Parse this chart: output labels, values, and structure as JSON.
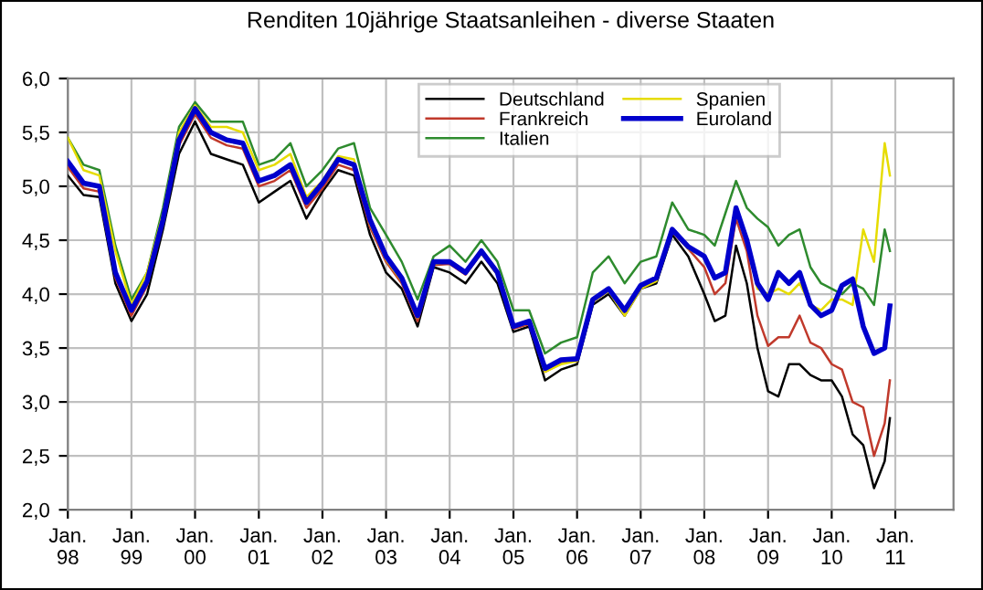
{
  "chart_data": {
    "type": "line",
    "title": "Renditen 10jährige Staatsanleihen - diverse Staaten",
    "x": [
      "1998-01",
      "1998-04",
      "1998-07",
      "1998-10",
      "1999-01",
      "1999-04",
      "1999-07",
      "1999-10",
      "2000-01",
      "2000-04",
      "2000-07",
      "2000-10",
      "2001-01",
      "2001-04",
      "2001-07",
      "2001-10",
      "2002-01",
      "2002-04",
      "2002-07",
      "2002-10",
      "2003-01",
      "2003-04",
      "2003-07",
      "2003-10",
      "2004-01",
      "2004-04",
      "2004-07",
      "2004-10",
      "2005-01",
      "2005-04",
      "2005-07",
      "2005-10",
      "2006-01",
      "2006-04",
      "2006-07",
      "2006-10",
      "2007-01",
      "2007-04",
      "2007-07",
      "2007-10",
      "2008-01",
      "2008-03",
      "2008-05",
      "2008-07",
      "2008-09",
      "2008-11",
      "2009-01",
      "2009-03",
      "2009-05",
      "2009-07",
      "2009-09",
      "2009-11",
      "2010-01",
      "2010-03",
      "2010-05",
      "2010-07",
      "2010-09",
      "2010-11",
      "2010-12"
    ],
    "series": [
      {
        "name": "Deutschland",
        "color": "#000000",
        "values": [
          5.1,
          4.92,
          4.9,
          4.1,
          3.75,
          4.0,
          4.6,
          5.3,
          5.6,
          5.3,
          5.25,
          5.2,
          4.85,
          4.95,
          5.05,
          4.7,
          4.95,
          5.15,
          5.1,
          4.55,
          4.2,
          4.05,
          3.7,
          4.25,
          4.2,
          4.1,
          4.3,
          4.1,
          3.65,
          3.7,
          3.2,
          3.3,
          3.35,
          3.9,
          4.0,
          3.8,
          4.05,
          4.1,
          4.55,
          4.35,
          4.0,
          3.75,
          3.8,
          4.45,
          4.1,
          3.5,
          3.1,
          3.05,
          3.35,
          3.35,
          3.25,
          3.2,
          3.2,
          3.05,
          2.7,
          2.6,
          2.2,
          2.45,
          2.85
        ]
      },
      {
        "name": "Frankreich",
        "color": "#c0392b",
        "values": [
          5.18,
          4.98,
          4.95,
          4.15,
          3.8,
          4.08,
          4.65,
          5.38,
          5.67,
          5.45,
          5.38,
          5.35,
          5.0,
          5.05,
          5.15,
          4.8,
          4.98,
          5.2,
          5.15,
          4.62,
          4.3,
          4.1,
          3.75,
          4.27,
          4.28,
          4.18,
          4.38,
          4.18,
          3.68,
          3.72,
          3.28,
          3.36,
          3.38,
          3.93,
          4.03,
          3.83,
          4.06,
          4.13,
          4.58,
          4.42,
          4.25,
          4.0,
          4.1,
          4.7,
          4.4,
          3.8,
          3.52,
          3.6,
          3.6,
          3.8,
          3.55,
          3.5,
          3.35,
          3.3,
          3.0,
          2.95,
          2.5,
          2.8,
          3.2
        ]
      },
      {
        "name": "Italien",
        "color": "#2e8b2e",
        "values": [
          5.45,
          5.2,
          5.15,
          4.45,
          3.95,
          4.2,
          4.8,
          5.55,
          5.78,
          5.6,
          5.6,
          5.6,
          5.2,
          5.25,
          5.4,
          5.0,
          5.15,
          5.35,
          5.4,
          4.8,
          4.55,
          4.3,
          3.95,
          4.35,
          4.45,
          4.3,
          4.5,
          4.3,
          3.85,
          3.85,
          3.45,
          3.55,
          3.6,
          4.2,
          4.35,
          4.1,
          4.3,
          4.35,
          4.85,
          4.6,
          4.55,
          4.45,
          4.75,
          5.05,
          4.8,
          4.7,
          4.62,
          4.45,
          4.55,
          4.6,
          4.25,
          4.1,
          4.05,
          4.0,
          4.1,
          4.05,
          3.9,
          4.6,
          4.4
        ]
      },
      {
        "name": "Spanien",
        "color": "#e6dc00",
        "values": [
          5.45,
          5.15,
          5.1,
          4.4,
          3.9,
          4.2,
          4.75,
          5.5,
          5.75,
          5.55,
          5.55,
          5.5,
          5.15,
          5.2,
          5.3,
          4.9,
          5.05,
          5.28,
          5.25,
          4.65,
          4.32,
          4.12,
          3.78,
          4.28,
          4.3,
          4.2,
          4.38,
          4.18,
          3.7,
          3.73,
          3.28,
          3.35,
          3.38,
          3.93,
          4.03,
          3.8,
          4.05,
          4.12,
          4.6,
          4.42,
          4.35,
          4.15,
          4.2,
          4.8,
          4.5,
          4.05,
          4.0,
          4.05,
          4.0,
          4.1,
          3.9,
          3.85,
          3.95,
          3.95,
          3.9,
          4.6,
          4.3,
          5.4,
          5.1
        ]
      },
      {
        "name": "Euroland",
        "color": "#0000cc",
        "values": [
          5.23,
          5.03,
          5.0,
          4.2,
          3.85,
          4.12,
          4.69,
          5.43,
          5.72,
          5.5,
          5.43,
          5.4,
          5.05,
          5.1,
          5.2,
          4.85,
          5.03,
          5.25,
          5.2,
          4.69,
          4.35,
          4.15,
          3.8,
          4.3,
          4.3,
          4.2,
          4.4,
          4.2,
          3.7,
          3.75,
          3.31,
          3.39,
          3.4,
          3.95,
          4.05,
          3.85,
          4.08,
          4.15,
          4.6,
          4.44,
          4.35,
          4.15,
          4.2,
          4.8,
          4.5,
          4.1,
          3.95,
          4.2,
          4.1,
          4.2,
          3.9,
          3.8,
          3.85,
          4.08,
          4.14,
          3.7,
          3.45,
          3.5,
          3.89
        ]
      }
    ],
    "xlim": [
      "1998-01",
      "2011-12"
    ],
    "xticks": [
      {
        "value": "1998-01",
        "label": "Jan.\n98"
      },
      {
        "value": "1999-01",
        "label": "Jan.\n99"
      },
      {
        "value": "2000-01",
        "label": "Jan.\n00"
      },
      {
        "value": "2001-01",
        "label": "Jan.\n01"
      },
      {
        "value": "2002-01",
        "label": "Jan.\n02"
      },
      {
        "value": "2003-01",
        "label": "Jan.\n03"
      },
      {
        "value": "2004-01",
        "label": "Jan.\n04"
      },
      {
        "value": "2005-01",
        "label": "Jan.\n05"
      },
      {
        "value": "2006-01",
        "label": "Jan.\n06"
      },
      {
        "value": "2007-01",
        "label": "Jan.\n07"
      },
      {
        "value": "2008-01",
        "label": "Jan.\n08"
      },
      {
        "value": "2009-01",
        "label": "Jan.\n09"
      },
      {
        "value": "2010-01",
        "label": "Jan.\n10"
      },
      {
        "value": "2011-01",
        "label": "Jan.\n11"
      }
    ],
    "ylim": [
      2.0,
      6.0
    ],
    "yticks": [
      {
        "value": 2.0,
        "label": "2,0"
      },
      {
        "value": 2.5,
        "label": "2,5"
      },
      {
        "value": 3.0,
        "label": "3,0"
      },
      {
        "value": 3.5,
        "label": "3,5"
      },
      {
        "value": 4.0,
        "label": "4,0"
      },
      {
        "value": 4.5,
        "label": "4,5"
      },
      {
        "value": 5.0,
        "label": "5,0"
      },
      {
        "value": 5.5,
        "label": "5,5"
      },
      {
        "value": 6.0,
        "label": "6,0"
      }
    ],
    "grid": true,
    "legend": "top",
    "marker": "none",
    "line_style": "solid"
  }
}
